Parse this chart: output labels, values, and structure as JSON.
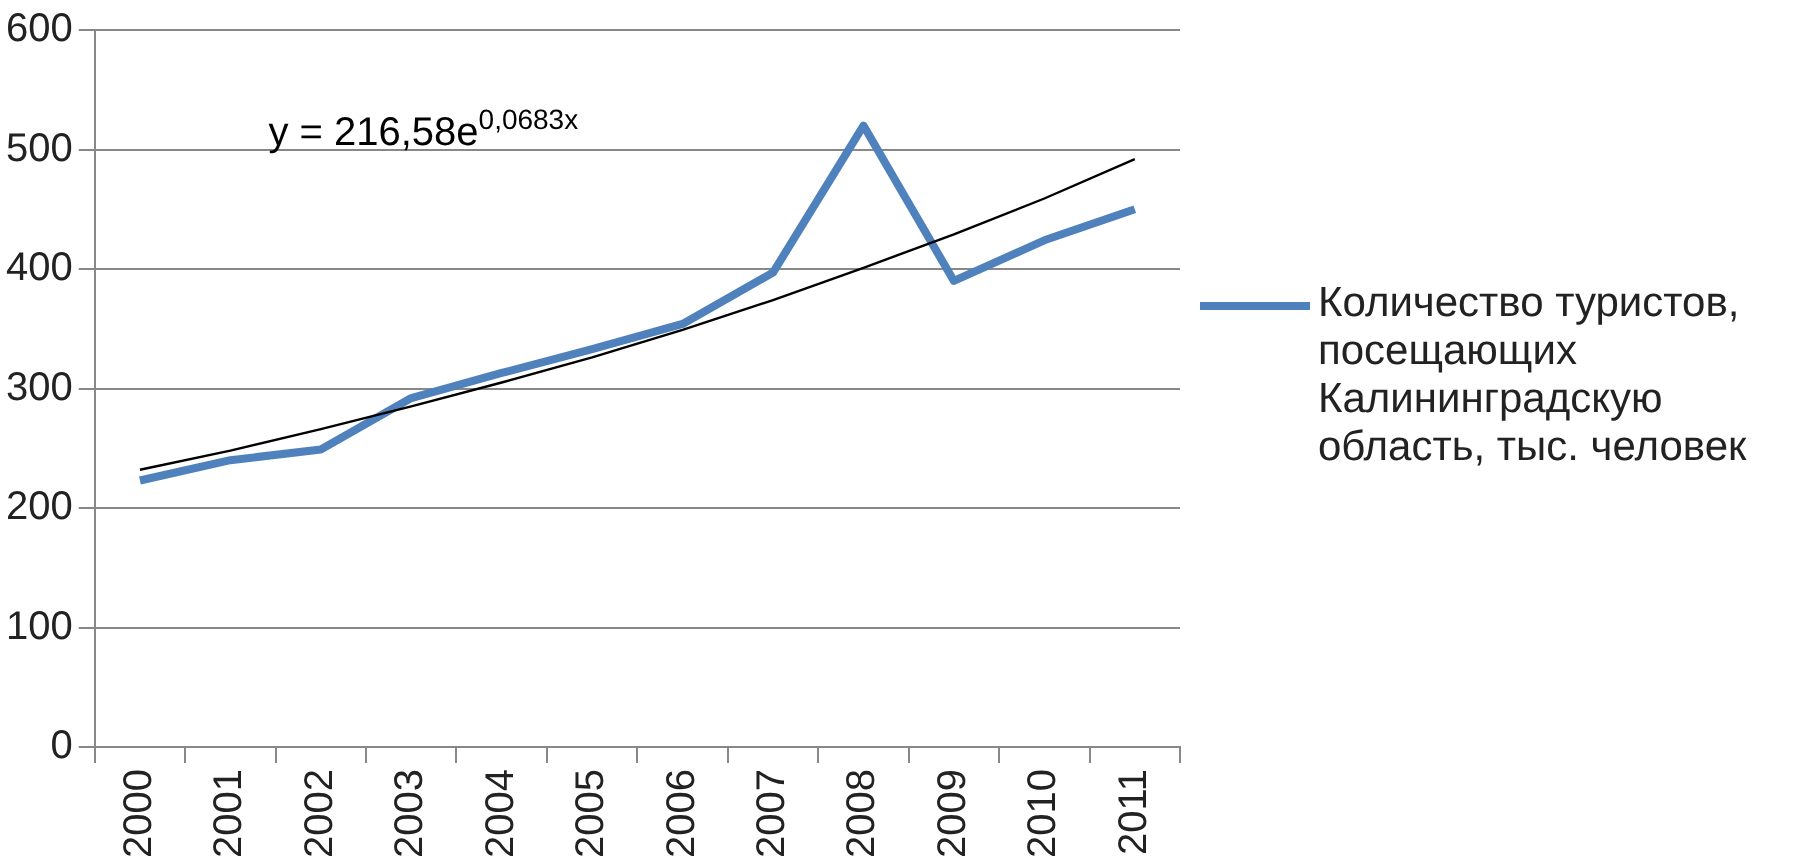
{
  "chart_data": {
    "type": "line",
    "categories": [
      "2000",
      "2001",
      "2002",
      "2003",
      "2004",
      "2005",
      "2006",
      "2007",
      "2008",
      "2009",
      "2010",
      "2011"
    ],
    "series": [
      {
        "name": "Количество туристов, посещающих Калининградскую область, тыс. человек",
        "color": "#4f81bd",
        "values": [
          223,
          240,
          249,
          292,
          313,
          333,
          354,
          397,
          520,
          390,
          424,
          450
        ]
      },
      {
        "type": "line",
        "color": "#000000",
        "values": [
          232,
          248,
          266,
          285,
          305,
          326,
          349,
          374,
          401,
          429,
          459,
          492
        ]
      }
    ],
    "ylim": [
      0,
      600
    ],
    "yticks": [
      0,
      100,
      200,
      300,
      400,
      500,
      600
    ],
    "grid": "y",
    "legend": "right",
    "marker": "none",
    "annotations": [
      "y = 216,58e$^{0,0683x}$"
    ]
  }
}
